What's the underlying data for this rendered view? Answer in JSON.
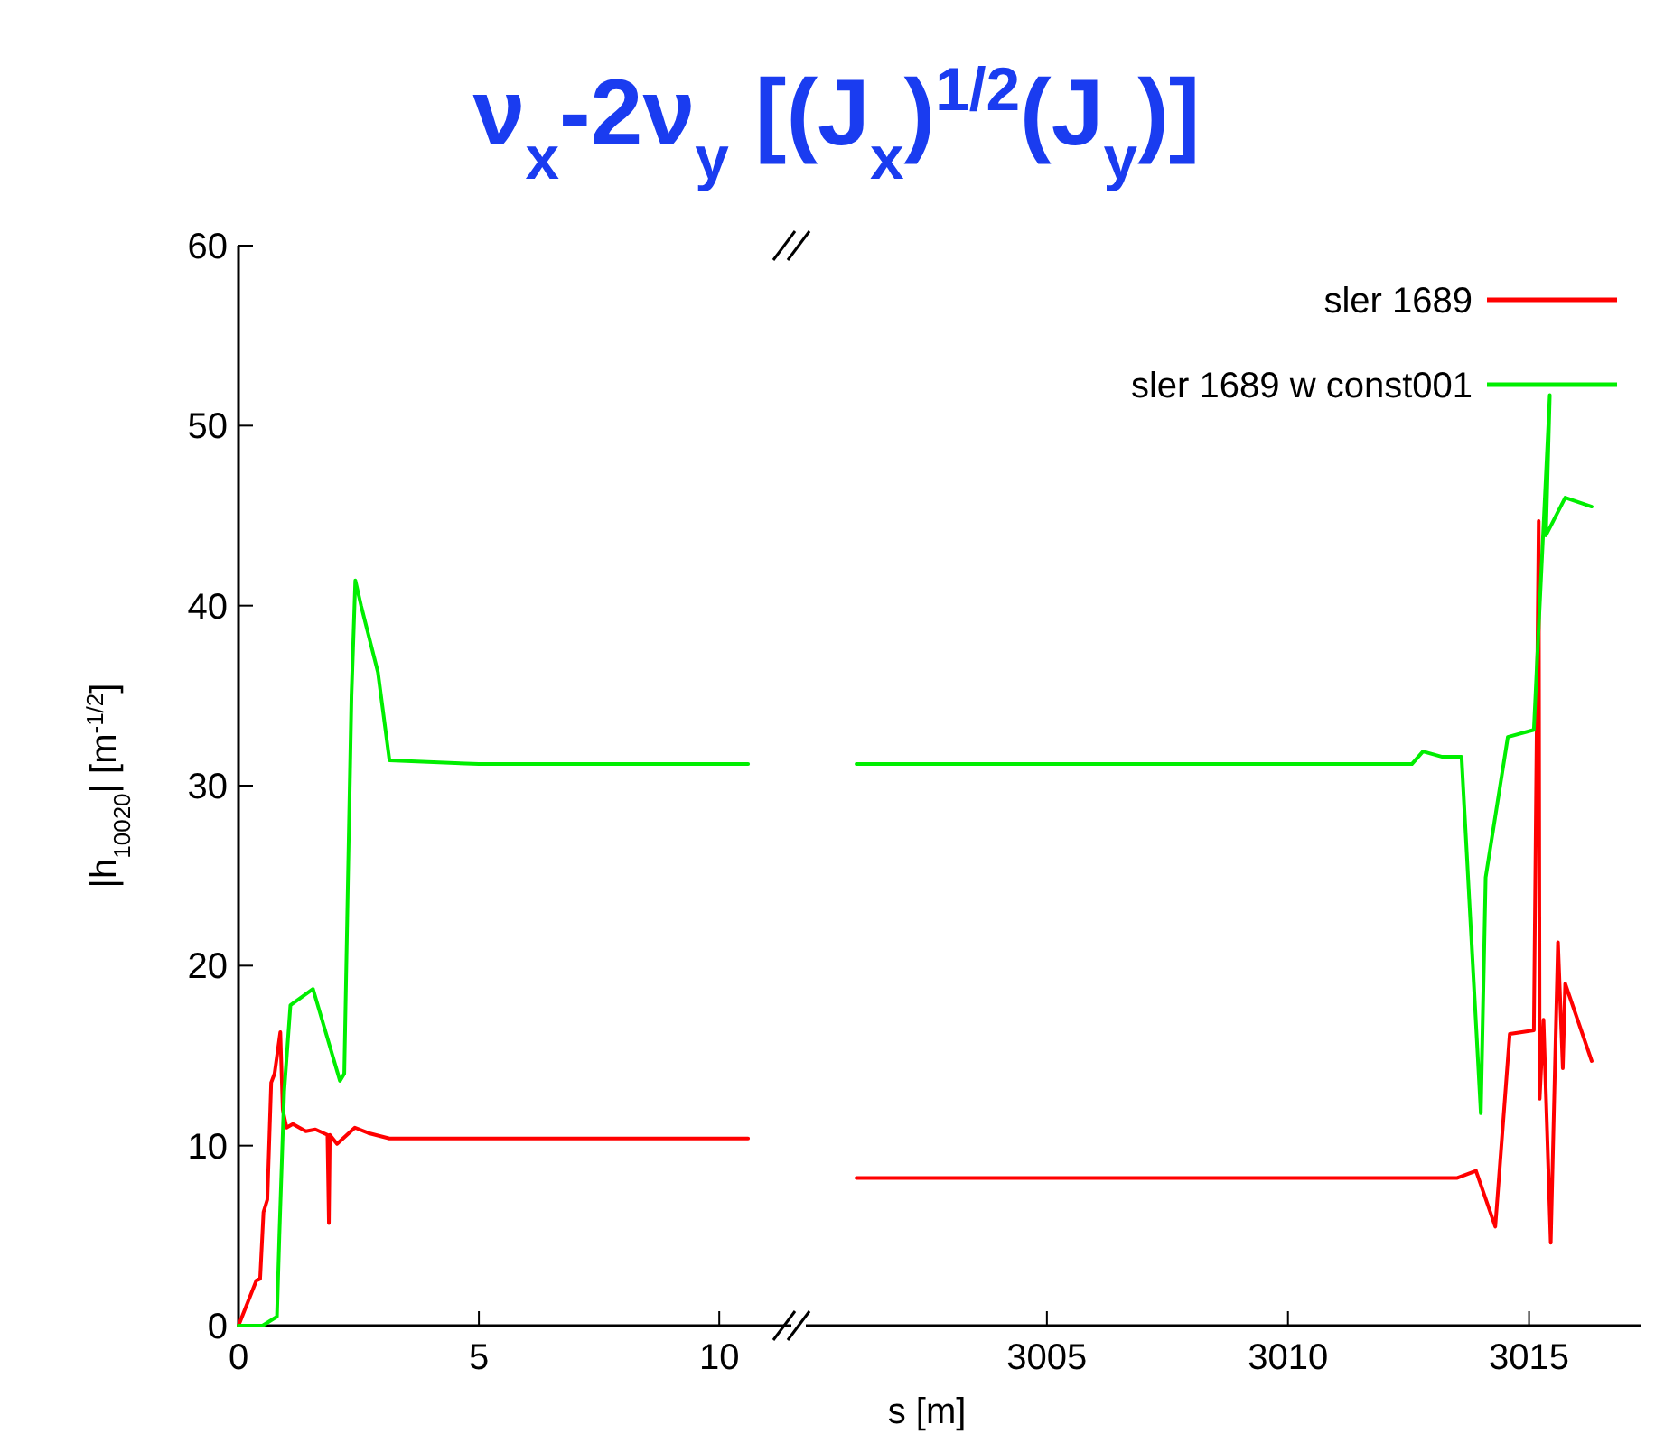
{
  "chart_data": [
    {
      "type": "line",
      "title": "ν$_{x}$-2ν$_{y}$ [(J$_{x}$)$^{1/2}$(J$_{y}$)]",
      "xlabel": "s [m]",
      "ylabel": "|h$_{10020}$| [m$^{-1/2}$]",
      "xlim": [
        0,
        11.5
      ],
      "xticks": [
        0,
        5,
        10
      ],
      "ylim": [
        0,
        60
      ],
      "yticks": [
        0,
        10,
        20,
        30,
        40,
        50,
        60
      ],
      "grid": false,
      "legend": false,
      "marker": "none",
      "line_style": "solid",
      "series": [
        {
          "color": "#ff0000",
          "x": [
            0,
            0.37,
            0.45,
            0.52,
            0.6,
            0.68,
            0.75,
            0.87,
            0.92,
            1.0,
            1.13,
            1.4,
            1.6,
            1.85,
            1.88,
            1.9,
            2.05,
            2.42,
            2.7,
            3.14,
            5,
            10.6
          ],
          "values": [
            0,
            2.5,
            2.6,
            6.3,
            7,
            13.5,
            14,
            16.3,
            12,
            11,
            11.2,
            10.8,
            10.9,
            10.6,
            5.7,
            10.6,
            10.1,
            11,
            10.7,
            10.4,
            10.4,
            10.4
          ]
        },
        {
          "color": "#00ee00",
          "x": [
            0,
            0.5,
            0.8,
            0.85,
            0.95,
            1.08,
            1.55,
            2.11,
            2.2,
            2.35,
            2.43,
            2.55,
            2.9,
            3.14,
            5,
            10.6
          ],
          "values": [
            0,
            0,
            0.5,
            5,
            13,
            17.8,
            18.7,
            13.6,
            14,
            35,
            41.4,
            40,
            36.3,
            31.4,
            31.2,
            31.2
          ]
        }
      ]
    },
    {
      "type": "line",
      "xlim": [
        3000,
        3017.5
      ],
      "xticks": [
        3005,
        3010,
        3015
      ],
      "ylim": [
        0,
        60
      ],
      "yticks": [
        0,
        10,
        20,
        30,
        40,
        50,
        60
      ],
      "tick_labels": "x",
      "grid": false,
      "legend": "top right",
      "marker": "none",
      "line_style": "solid",
      "series": [
        {
          "name": "sler  1689",
          "color": "#ff0000",
          "x": [
            3001.05,
            3013.5,
            3013.9,
            3014.3,
            3014.6,
            3015.1,
            3015.2,
            3015.22,
            3015.3,
            3015.45,
            3015.6,
            3015.7,
            3015.75,
            3016.3
          ],
          "values": [
            8.2,
            8.2,
            8.6,
            5.5,
            16.2,
            16.4,
            44.7,
            12.6,
            17,
            4.6,
            21.3,
            14.3,
            19,
            14.7
          ]
        },
        {
          "name": "sler  1689  w  const001",
          "color": "#00ee00",
          "x": [
            3001.05,
            3012.57,
            3012.8,
            3013.2,
            3013.6,
            3014.0,
            3014.1,
            3014.56,
            3015.1,
            3015.2,
            3015.43,
            3015.35,
            3015.75,
            3016.3
          ],
          "values": [
            31.2,
            31.2,
            31.9,
            31.6,
            31.6,
            11.8,
            24.9,
            32.7,
            33.1,
            38.8,
            51.7,
            43.9,
            46,
            45.5
          ]
        }
      ]
    }
  ]
}
